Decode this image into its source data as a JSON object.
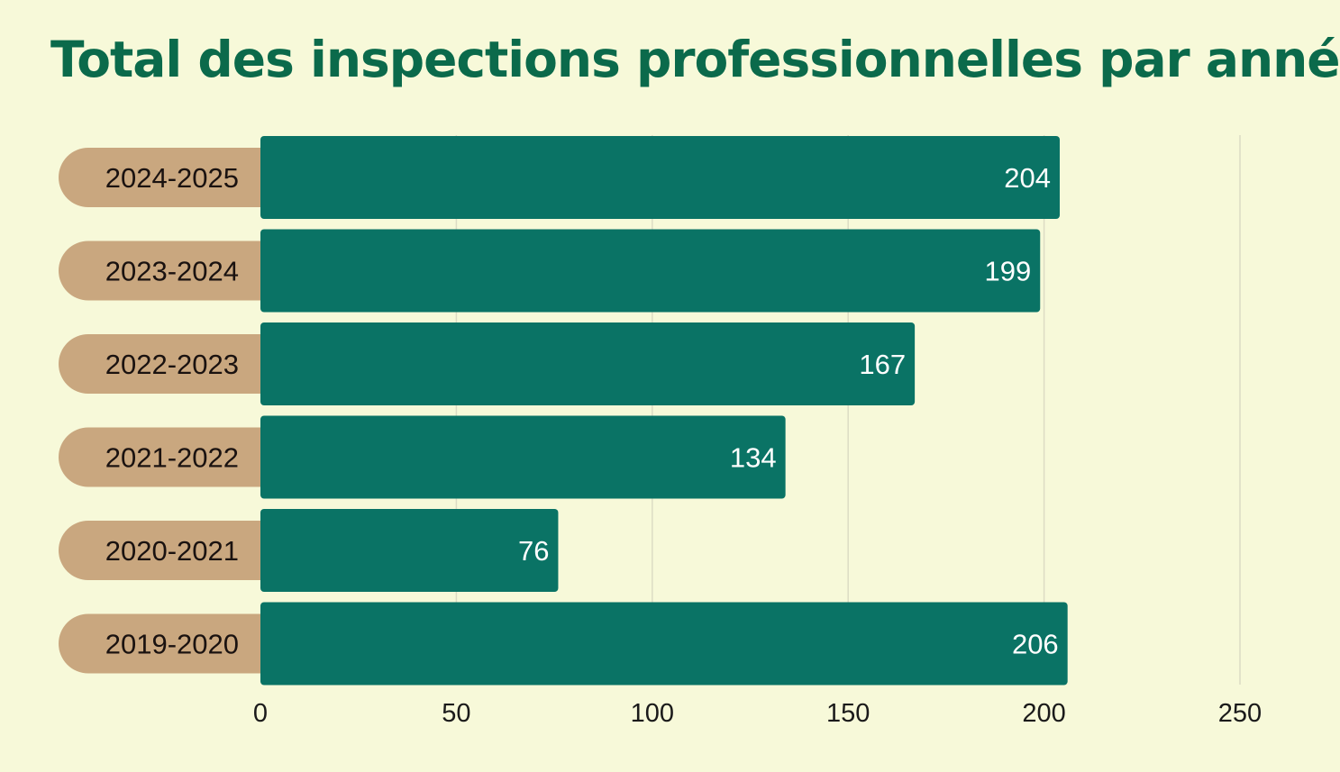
{
  "chart_data": {
    "type": "bar",
    "orientation": "horizontal",
    "title": "Total des inspections professionnelles par année",
    "categories": [
      "2024-2025",
      "2023-2024",
      "2022-2023",
      "2021-2022",
      "2020-2021",
      "2019-2020"
    ],
    "values": [
      204,
      199,
      167,
      134,
      76,
      206
    ],
    "xlabel": "",
    "ylabel": "",
    "xlim": [
      0,
      250
    ],
    "xticks": [
      "0",
      "50",
      "100",
      "150",
      "200",
      "250"
    ],
    "grid": true,
    "colors": {
      "bar": "#0a7365",
      "label_pill": "#c9a77f",
      "background": "#f7f9d9",
      "title": "#0b6a4b",
      "grid": "#dcdcc4"
    }
  }
}
